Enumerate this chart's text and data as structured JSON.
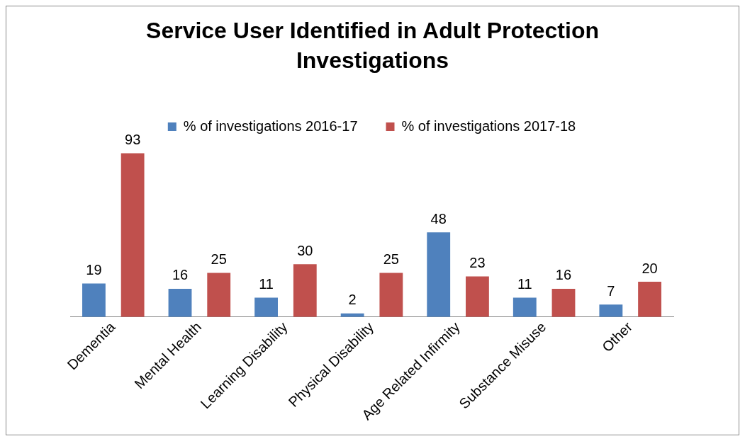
{
  "chart_data": {
    "type": "bar",
    "title": "Service User Identified in Adult Protection Investigations",
    "categories": [
      "Dementia",
      "Mental Health",
      "Learning Disability",
      "Physical Disability",
      "Age Related Infirmity",
      "Substance Misuse",
      "Other"
    ],
    "series": [
      {
        "name": "% of investigations 2016-17",
        "color": "#4f81bd",
        "values": [
          19,
          16,
          11,
          2,
          48,
          11,
          7
        ]
      },
      {
        "name": "% of investigations 2017-18",
        "color": "#c0504d",
        "values": [
          93,
          25,
          30,
          25,
          23,
          16,
          20
        ]
      }
    ],
    "data_labels": true,
    "legend": "top",
    "grid": false
  }
}
